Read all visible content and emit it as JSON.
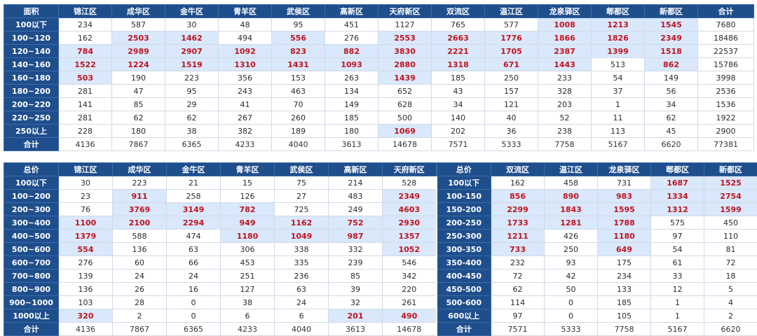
{
  "table1": {
    "headers": [
      "面积",
      "锦江区",
      "成华区",
      "金牛区",
      "青羊区",
      "武侯区",
      "高新区",
      "天府新区",
      "双流区",
      "温江区",
      "龙泉驿区",
      "郫都区",
      "新都区",
      "合计"
    ],
    "rows": [
      {
        "label": "100以下",
        "cells": [
          "234",
          "587",
          "30",
          "48",
          "95",
          "451",
          "1127",
          "765",
          "577",
          "1008",
          "1213",
          "1545",
          "7680"
        ],
        "hl": [
          9,
          10,
          11
        ],
        "bg": [
          9,
          10,
          11
        ]
      },
      {
        "label": "100~120",
        "cells": [
          "162",
          "2503",
          "1462",
          "494",
          "556",
          "276",
          "2553",
          "2663",
          "1776",
          "1866",
          "1826",
          "2349",
          "18486"
        ],
        "hl": [
          1,
          2,
          4,
          6,
          7,
          8,
          9,
          10,
          11
        ],
        "bg": [
          1,
          2,
          4,
          6,
          7,
          8,
          9,
          10,
          11
        ]
      },
      {
        "label": "120~140",
        "cells": [
          "784",
          "2989",
          "2907",
          "1092",
          "823",
          "882",
          "3830",
          "2221",
          "1705",
          "2387",
          "1399",
          "1518",
          "22537"
        ],
        "hl": [
          0,
          1,
          2,
          3,
          4,
          5,
          6,
          7,
          8,
          9,
          10,
          11
        ],
        "bg": [
          0,
          1,
          2,
          3,
          4,
          5,
          6,
          7,
          8,
          9,
          10,
          11
        ]
      },
      {
        "label": "140~160",
        "cells": [
          "1522",
          "1224",
          "1519",
          "1310",
          "1431",
          "1093",
          "2880",
          "1318",
          "671",
          "1443",
          "513",
          "862",
          "15786"
        ],
        "hl": [
          0,
          1,
          2,
          3,
          4,
          5,
          6,
          7,
          8,
          9,
          11
        ],
        "bg": [
          0,
          1,
          2,
          3,
          4,
          5,
          6,
          7,
          8,
          9,
          11
        ]
      },
      {
        "label": "160~180",
        "cells": [
          "503",
          "190",
          "223",
          "356",
          "153",
          "263",
          "1439",
          "185",
          "250",
          "233",
          "54",
          "149",
          "3998"
        ],
        "hl": [
          0,
          6
        ],
        "bg": [
          0,
          6
        ]
      },
      {
        "label": "180~200",
        "cells": [
          "281",
          "47",
          "95",
          "243",
          "463",
          "134",
          "652",
          "43",
          "157",
          "328",
          "37",
          "56",
          "2536"
        ],
        "hl": [],
        "bg": []
      },
      {
        "label": "200~220",
        "cells": [
          "141",
          "85",
          "29",
          "41",
          "70",
          "149",
          "628",
          "34",
          "121",
          "203",
          "1",
          "34",
          "1536"
        ],
        "hl": [],
        "bg": []
      },
      {
        "label": "220~250",
        "cells": [
          "281",
          "62",
          "62",
          "267",
          "260",
          "185",
          "500",
          "140",
          "40",
          "52",
          "11",
          "62",
          "1922"
        ],
        "hl": [],
        "bg": []
      },
      {
        "label": "250以上",
        "cells": [
          "228",
          "180",
          "38",
          "382",
          "189",
          "180",
          "1069",
          "202",
          "36",
          "238",
          "113",
          "45",
          "2900"
        ],
        "hl": [
          6
        ],
        "bg": [
          6
        ]
      }
    ],
    "total": {
      "label": "合计",
      "cells": [
        "4136",
        "7867",
        "6365",
        "4233",
        "4040",
        "3613",
        "14678",
        "7571",
        "5333",
        "7758",
        "5167",
        "6620",
        "77381"
      ]
    }
  },
  "table2": {
    "headers": [
      "总价",
      "锦江区",
      "成华区",
      "金牛区",
      "青羊区",
      "武侯区",
      "高新区",
      "天府新区",
      "总价",
      "双流区",
      "温江区",
      "龙泉驿区",
      "郫都区",
      "新都区"
    ],
    "rows": [
      {
        "left_label": "100以下",
        "left": [
          "30",
          "223",
          "21",
          "15",
          "75",
          "214",
          "528"
        ],
        "left_hl": [],
        "right_label": "100以下",
        "right": [
          "162",
          "458",
          "731",
          "1687",
          "1525"
        ],
        "right_hl": [
          3,
          4
        ]
      },
      {
        "left_label": "100~200",
        "left": [
          "23",
          "911",
          "258",
          "126",
          "27",
          "483",
          "2349"
        ],
        "left_hl": [
          1,
          6
        ],
        "right_label": "100-150",
        "right": [
          "856",
          "890",
          "983",
          "1334",
          "2754"
        ],
        "right_hl": [
          0,
          1,
          2,
          3,
          4
        ]
      },
      {
        "left_label": "200~300",
        "left": [
          "76",
          "3769",
          "3149",
          "782",
          "725",
          "249",
          "4603"
        ],
        "left_hl": [
          1,
          2,
          3,
          6
        ],
        "right_label": "150-200",
        "right": [
          "2299",
          "1843",
          "1595",
          "1312",
          "1599"
        ],
        "right_hl": [
          0,
          1,
          2,
          3,
          4
        ]
      },
      {
        "left_label": "300~400",
        "left": [
          "1100",
          "2100",
          "2294",
          "949",
          "1162",
          "752",
          "2930"
        ],
        "left_hl": [
          0,
          1,
          2,
          3,
          4,
          5,
          6
        ],
        "right_label": "200-250",
        "right": [
          "1733",
          "1281",
          "1788",
          "575",
          "450"
        ],
        "right_hl": [
          0,
          1,
          2
        ]
      },
      {
        "left_label": "400~500",
        "left": [
          "1379",
          "588",
          "474",
          "1180",
          "1049",
          "987",
          "1357"
        ],
        "left_hl": [
          0,
          3,
          4,
          5,
          6
        ],
        "right_label": "250-300",
        "right": [
          "1211",
          "426",
          "1180",
          "97",
          "110"
        ],
        "right_hl": [
          0,
          2
        ]
      },
      {
        "left_label": "500~600",
        "left": [
          "554",
          "136",
          "63",
          "306",
          "338",
          "332",
          "1052"
        ],
        "left_hl": [
          0,
          6
        ],
        "right_label": "300-350",
        "right": [
          "733",
          "250",
          "649",
          "54",
          "81"
        ],
        "right_hl": [
          0,
          2
        ]
      },
      {
        "left_label": "600~700",
        "left": [
          "276",
          "60",
          "66",
          "453",
          "335",
          "239",
          "546"
        ],
        "left_hl": [],
        "right_label": "350-400",
        "right": [
          "232",
          "93",
          "175",
          "61",
          "72"
        ],
        "right_hl": []
      },
      {
        "left_label": "700~800",
        "left": [
          "139",
          "24",
          "24",
          "251",
          "236",
          "85",
          "342"
        ],
        "left_hl": [],
        "right_label": "400-450",
        "right": [
          "72",
          "42",
          "234",
          "33",
          "18"
        ],
        "right_hl": []
      },
      {
        "left_label": "800~900",
        "left": [
          "136",
          "26",
          "16",
          "127",
          "63",
          "39",
          "220"
        ],
        "left_hl": [],
        "right_label": "450-500",
        "right": [
          "62",
          "50",
          "133",
          "12",
          "5"
        ],
        "right_hl": []
      },
      {
        "left_label": "900~1000",
        "left": [
          "103",
          "28",
          "0",
          "38",
          "24",
          "32",
          "261"
        ],
        "left_hl": [],
        "right_label": "500-600",
        "right": [
          "114",
          "0",
          "185",
          "1",
          "4"
        ],
        "right_hl": []
      },
      {
        "left_label": "1000以上",
        "left": [
          "320",
          "2",
          "0",
          "6",
          "6",
          "201",
          "490"
        ],
        "left_hl": [
          0,
          5,
          6
        ],
        "right_label": "600以上",
        "right": [
          "97",
          "0",
          "105",
          "1",
          "2"
        ],
        "right_hl": []
      }
    ],
    "total": {
      "left_label": "合计",
      "left": [
        "4136",
        "7867",
        "6365",
        "4233",
        "4040",
        "3613",
        "14678"
      ],
      "right_label": "合计",
      "right": [
        "7571",
        "5333",
        "7758",
        "5167",
        "6620"
      ]
    }
  },
  "colors": {
    "header_bg": "#1f4e8c",
    "highlight_text": "#c0141f",
    "highlight_bg": "#d9e8fb"
  }
}
